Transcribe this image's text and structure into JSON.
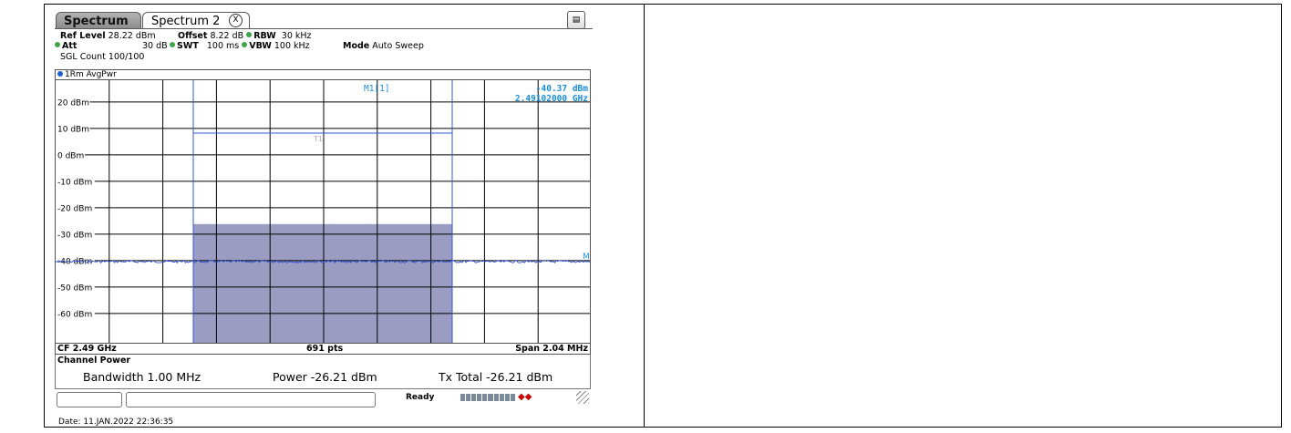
{
  "tabs": [
    {
      "label": "Spectrum",
      "active": false
    },
    {
      "label": "Spectrum 2",
      "active": true
    }
  ],
  "tab_close_glyph": "X",
  "params": {
    "ref_level_label": "Ref Level",
    "ref_level": "28.22 dBm",
    "offset_label": "Offset",
    "offset": "8.22 dB",
    "rbw_label": "RBW",
    "rbw": "30 kHz",
    "att_label": "Att",
    "att": "30 dB",
    "swt_label": "SWT",
    "swt": "100 ms",
    "vbw_label": "VBW",
    "vbw": "100 kHz",
    "mode_label": "Mode",
    "mode": "Auto Sweep",
    "sgl_count": "SGL Count 100/100"
  },
  "trace_label": "1Rm AvgPwr",
  "marker": {
    "name": "M1[1]",
    "level": "-40.37 dBm",
    "freq": "2.49102000 GHz",
    "edge_label": "M"
  },
  "channel_limit_label": "T1",
  "y_axis": {
    "ticks": [
      "20 dBm",
      "10 dBm",
      "0 dBm",
      "-10 dBm",
      "-20 dBm",
      "-30 dBm",
      "-40 dBm",
      "-50 dBm",
      "-60 dBm"
    ],
    "max_dbm": 28.22,
    "min_dbm": -71.78
  },
  "chart_data": {
    "type": "line",
    "channel_power_block_top_dbm": -26.21,
    "trace_level_dbm": -40.4,
    "limit_line_dbm": 8.2
  },
  "footer": {
    "cf": "CF 2.49 GHz",
    "pts": "691 pts",
    "span": "Span 2.04 MHz"
  },
  "channel_power": {
    "title": "Channel Power",
    "bandwidth": "Bandwidth  1.00 MHz",
    "power": "Power  -26.21 dBm",
    "tx_total": "Tx Total  -26.21 dBm"
  },
  "status": {
    "ready": "Ready"
  },
  "date": "Date: 11.JAN.2022  22:36:35",
  "colors": {
    "trace": "#2b4fd6",
    "marker_text": "#1a8fd6",
    "channel_block": "#9a9cc1"
  }
}
